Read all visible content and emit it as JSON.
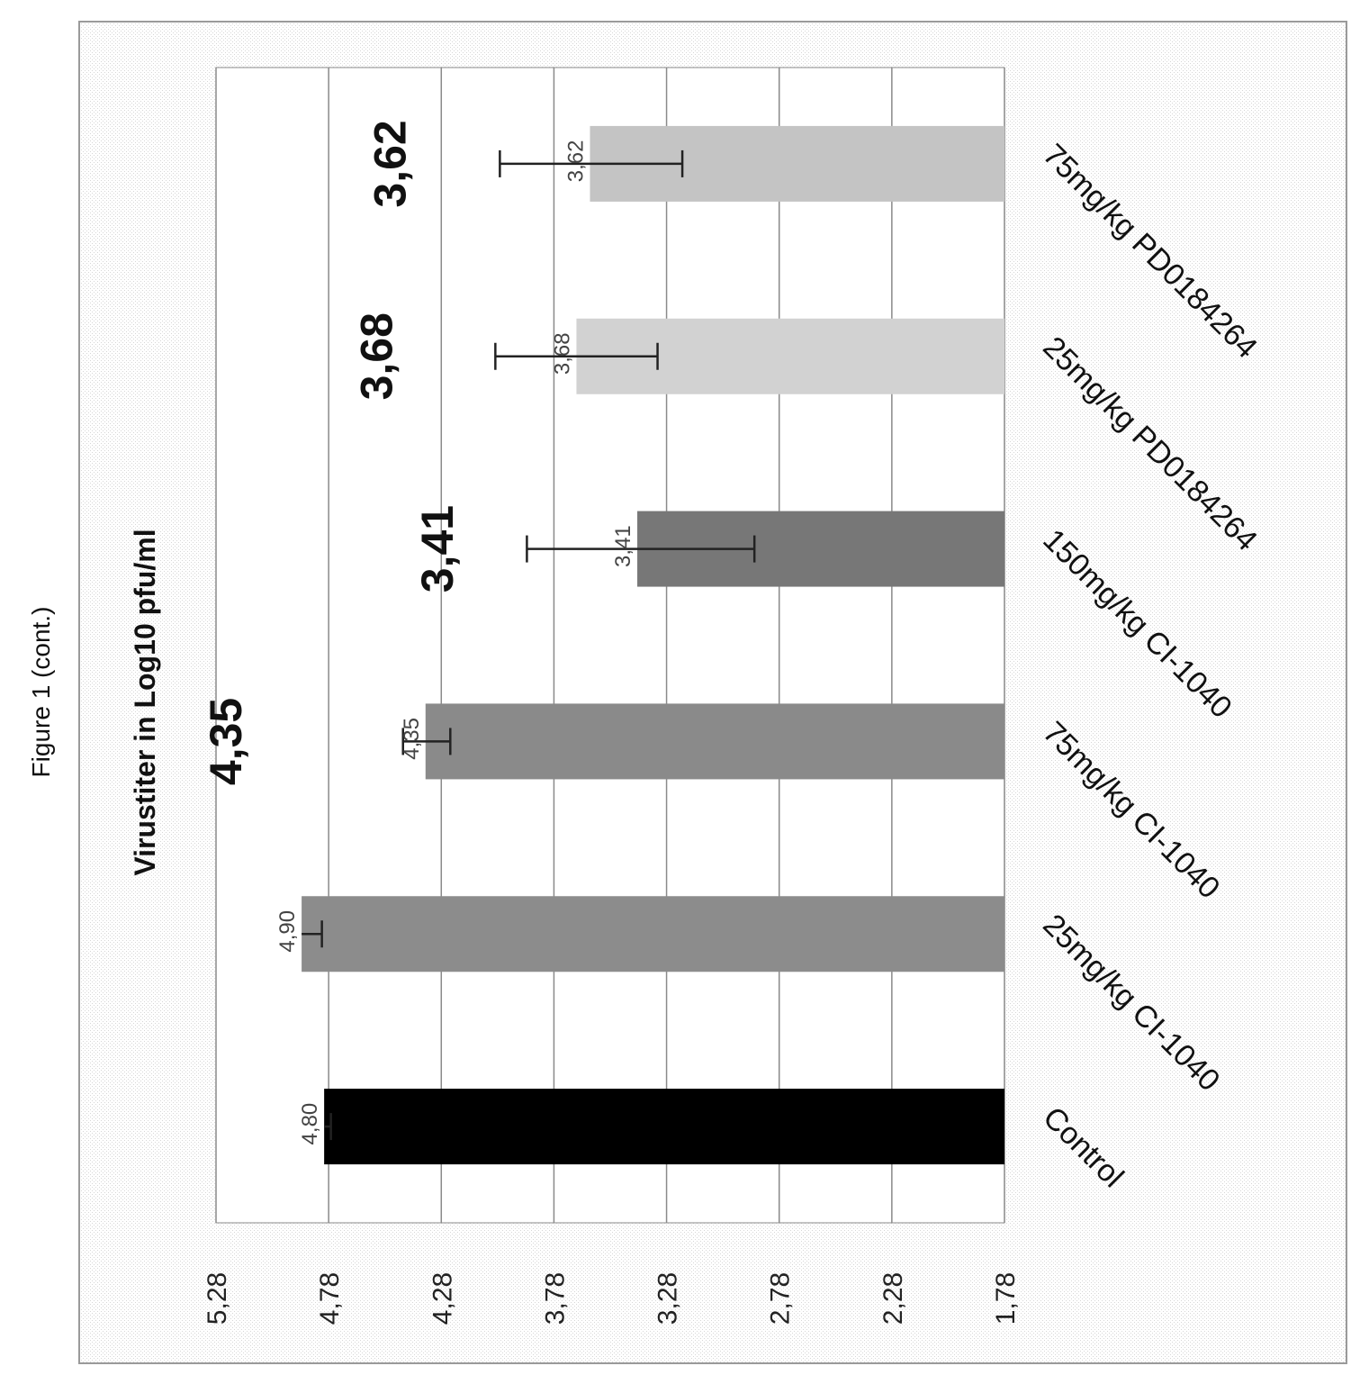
{
  "figure": {
    "title": "Figure 1 (cont.)"
  },
  "chart_data": {
    "type": "bar",
    "title": "Virustiter in Log10 pfu/ml",
    "xlabel": "",
    "ylabel": "",
    "categories": [
      "Control",
      "25mg/kg CI-1040",
      "75mg/kg CI-1040",
      "150mg/kg CI-1040",
      "25mg/kg PD0184264",
      "75mg/kg PD0184264"
    ],
    "values": [
      4.8,
      4.9,
      4.35,
      3.41,
      3.68,
      3.62
    ],
    "data_labels": [
      "4,80",
      "4,90",
      "4,35",
      "3,41",
      "3,68",
      "3,62"
    ],
    "highlight_labels": [
      "",
      "",
      "4,35",
      "3,41",
      "3,68",
      "3,62"
    ],
    "error_bars": [
      {
        "plus": 0,
        "minus": 0.03
      },
      {
        "plus": 0,
        "minus": 0.09
      },
      {
        "plus": 0.1,
        "minus": 0.11
      },
      {
        "plus": 0.49,
        "minus": 0.52
      },
      {
        "plus": 0.36,
        "minus": 0.36
      },
      {
        "plus": 0.4,
        "minus": 0.41
      }
    ],
    "ylim": [
      1.78,
      5.28
    ],
    "yticks": [
      1.78,
      2.28,
      2.78,
      3.28,
      3.78,
      4.28,
      4.78,
      5.28
    ],
    "ytick_labels": [
      "1,78",
      "2,28",
      "2,78",
      "3,28",
      "3,78",
      "4,28",
      "4,78",
      "5,28"
    ],
    "bar_colors": [
      "#000000",
      "#8c8c8c",
      "#8a8a8a",
      "#777777",
      "#d2d2d2",
      "#c4c4c4"
    ],
    "grid": true,
    "legend": "none"
  }
}
